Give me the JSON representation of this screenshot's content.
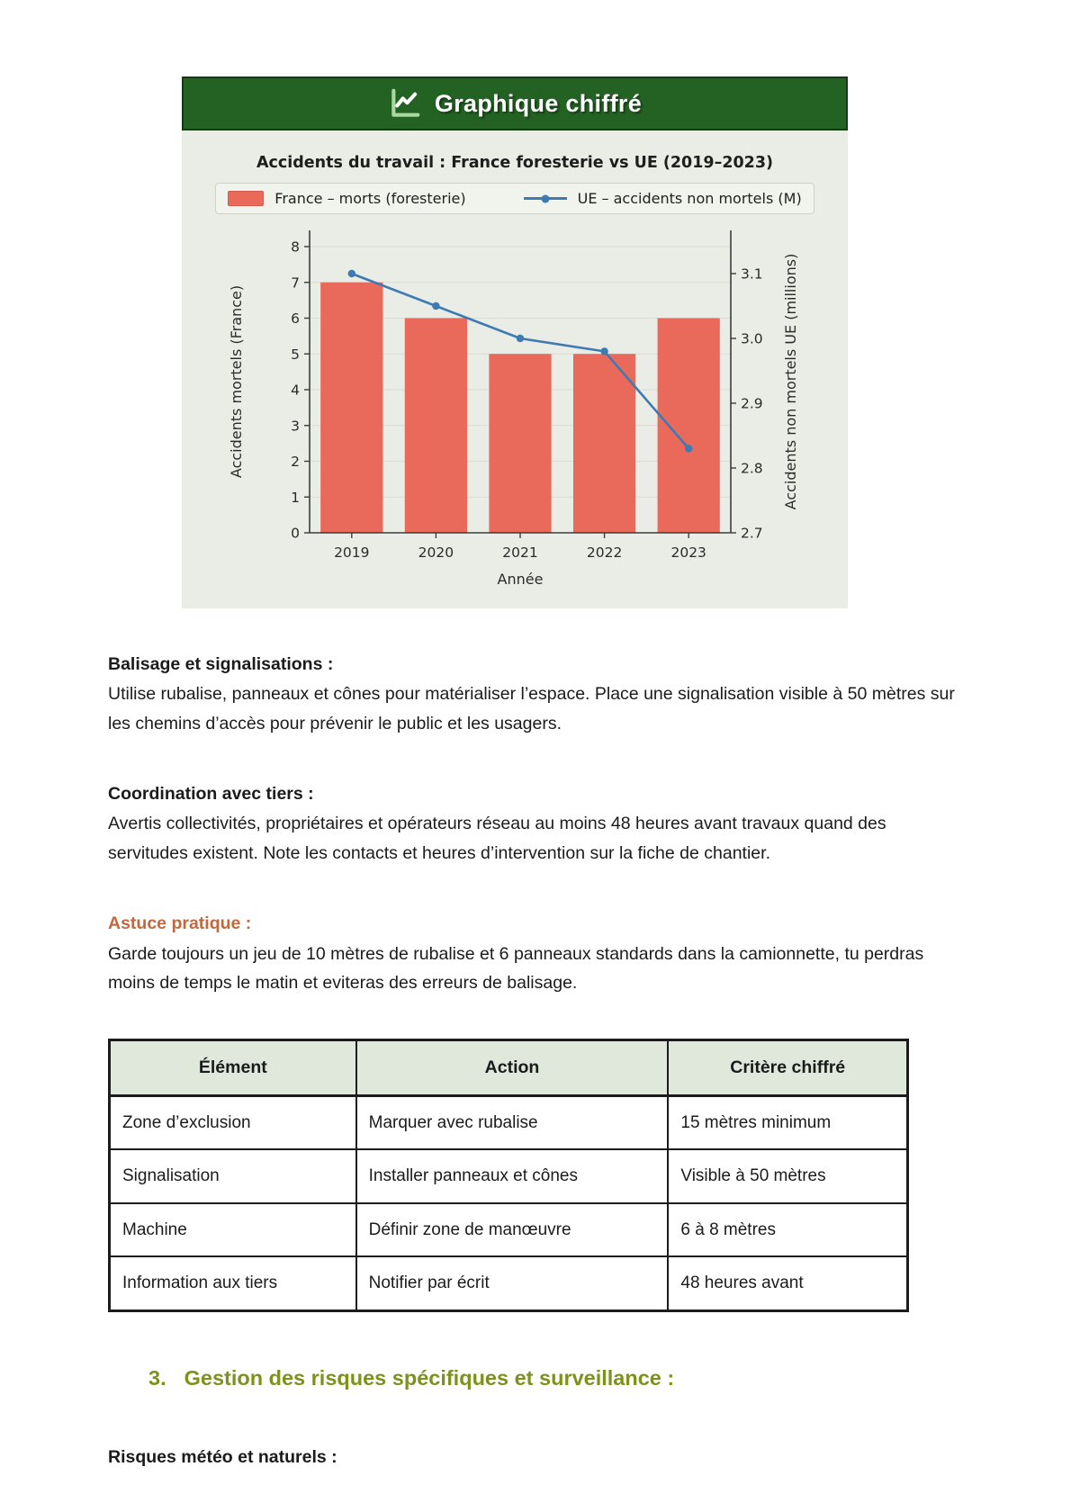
{
  "card": {
    "header_title": "Graphique chiffré"
  },
  "chart_data": {
    "type": "bar+line",
    "title": "Accidents du travail : France foresterie vs UE (2019–2023)",
    "categories": [
      "2019",
      "2020",
      "2021",
      "2022",
      "2023"
    ],
    "series": [
      {
        "name": "France – morts (foresterie)",
        "chart": "bar",
        "axis": "left",
        "color": "#e9695a",
        "values": [
          7,
          6,
          5,
          5,
          6
        ]
      },
      {
        "name": "UE – accidents non mortels (M)",
        "chart": "line",
        "axis": "right",
        "color": "#3d7bb2",
        "values": [
          3.1,
          3.05,
          3.0,
          2.98,
          2.83
        ]
      }
    ],
    "xlabel": "Année",
    "ylabel_left": "Accidents mortels (France)",
    "ylabel_right": "Accidents non mortels UE (millions)",
    "ylim_left": [
      0,
      8
    ],
    "ylim_right": [
      2.7,
      3.1
    ],
    "yticks_left": [
      0,
      1,
      2,
      3,
      4,
      5,
      6,
      7,
      8
    ],
    "yticks_right": [
      2.7,
      2.8,
      2.9,
      3.0,
      3.1
    ],
    "grid": true,
    "legend_position": "top"
  },
  "sections": [
    {
      "heading": "Balisage et signalisations :",
      "body": "Utilise rubalise, panneaux et cônes pour matérialiser l’espace. Place une signalisation visible à 50 mètres sur les chemins d’accès pour prévenir le public et les usagers."
    },
    {
      "heading": "Coordination avec tiers :",
      "body": "Avertis collectivités, propriétaires et opérateurs réseau au moins 48 heures avant travaux quand des servitudes existent. Note les contacts et heures d’intervention sur la fiche de chantier."
    },
    {
      "heading": "Astuce pratique :",
      "body": "Garde toujours un jeu de 10 mètres de rubalise et 6 panneaux standards dans la camionnette, tu perdras moins de temps le matin et eviteras des erreurs de balisage."
    }
  ],
  "table": {
    "headers": [
      "Élément",
      "Action",
      "Critère chiffré"
    ],
    "rows": [
      [
        "Zone d’exclusion",
        "Marquer avec rubalise",
        "15 mètres minimum"
      ],
      [
        "Signalisation",
        "Installer panneaux et cônes",
        "Visible à 50 mètres"
      ],
      [
        "Machine",
        "Définir zone de manœuvre",
        "6 à 8 mètres"
      ],
      [
        "Information aux tiers",
        "Notifier par écrit",
        "48 heures avant"
      ]
    ]
  },
  "numbered_heading": {
    "number": "3.",
    "text": "Gestion des risques spécifiques et surveillance :"
  },
  "footer_heading": "Risques météo et naturels :",
  "colors": {
    "header_bg": "#236223",
    "header_icon": "#a9d8a0",
    "card_bg": "#eaede6",
    "bar": "#e9695a",
    "line": "#3d7bb2",
    "accent_orange": "#c0693f",
    "accent_olive": "#7d921c",
    "table_header_bg": "#dfe8da",
    "text": "#1b1b1d"
  }
}
